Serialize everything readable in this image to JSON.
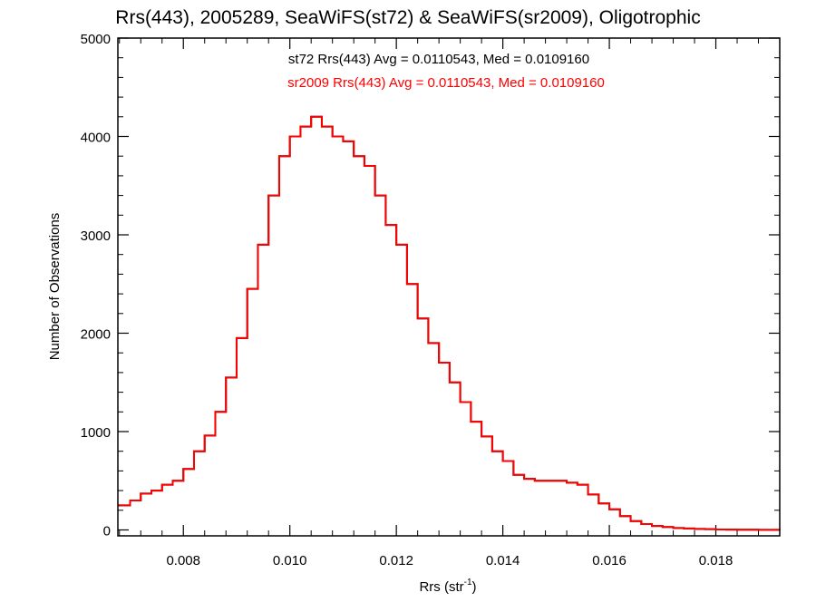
{
  "chart_data": {
    "type": "line",
    "title": "Rrs(443), 2005289, SeaWiFS(st72) & SeaWiFS(sr2009), Oligotrophic",
    "xlabel_main": "Rrs (str",
    "xlabel_sup": "-1",
    "xlabel_close": ")",
    "ylabel": "Number of Observations",
    "xlim": [
      0.00677,
      0.0192
    ],
    "ylim": [
      -60,
      5000
    ],
    "xticks": [
      {
        "value": 0.008,
        "label": "0.008"
      },
      {
        "value": 0.01,
        "label": "0.010"
      },
      {
        "value": 0.012,
        "label": "0.012"
      },
      {
        "value": 0.014,
        "label": "0.014"
      },
      {
        "value": 0.016,
        "label": "0.016"
      },
      {
        "value": 0.018,
        "label": "0.018"
      }
    ],
    "yticks": [
      {
        "value": 0,
        "label": "0"
      },
      {
        "value": 1000,
        "label": "1000"
      },
      {
        "value": 2000,
        "label": "2000"
      },
      {
        "value": 3000,
        "label": "3000"
      },
      {
        "value": 4000,
        "label": "4000"
      },
      {
        "value": 5000,
        "label": "5000"
      }
    ],
    "annotations": [
      {
        "text": "st72 Rrs(443) Avg = 0.0110543, Med = 0.0109160",
        "color": "#000000"
      },
      {
        "text": "sr2009 Rrs(443) Avg = 0.0110543, Med = 0.0109160",
        "color": "#ff0000"
      }
    ],
    "series": [
      {
        "name": "st72",
        "color": "#000000",
        "x": [
          0.00677,
          0.007,
          0.0072,
          0.0074,
          0.0076,
          0.0078,
          0.008,
          0.0082,
          0.0084,
          0.0086,
          0.0088,
          0.009,
          0.0092,
          0.0094,
          0.0096,
          0.0098,
          0.01,
          0.0102,
          0.0104,
          0.0106,
          0.0108,
          0.011,
          0.0112,
          0.0114,
          0.0116,
          0.0118,
          0.012,
          0.0122,
          0.0124,
          0.0126,
          0.0128,
          0.013,
          0.0132,
          0.0134,
          0.0136,
          0.0138,
          0.014,
          0.0142,
          0.0144,
          0.0146,
          0.0148,
          0.015,
          0.0152,
          0.0154,
          0.0156,
          0.0158,
          0.016,
          0.0162,
          0.0164,
          0.0166,
          0.0168,
          0.017,
          0.0172,
          0.0174,
          0.0176,
          0.0178,
          0.018,
          0.0182,
          0.0184,
          0.0186,
          0.0188,
          0.019,
          0.0192
        ],
        "values": [
          250,
          300,
          370,
          400,
          460,
          500,
          620,
          800,
          960,
          1200,
          1550,
          1950,
          2450,
          2900,
          3400,
          3800,
          4000,
          4100,
          4200,
          4100,
          4000,
          3950,
          3800,
          3700,
          3400,
          3100,
          2900,
          2500,
          2150,
          1900,
          1700,
          1500,
          1300,
          1100,
          950,
          800,
          700,
          560,
          520,
          500,
          500,
          500,
          480,
          460,
          360,
          270,
          210,
          140,
          90,
          60,
          40,
          30,
          20,
          15,
          10,
          8,
          5,
          3,
          2,
          2,
          1,
          1,
          0
        ]
      },
      {
        "name": "sr2009",
        "color": "#ff0000",
        "x": [
          0.00677,
          0.007,
          0.0072,
          0.0074,
          0.0076,
          0.0078,
          0.008,
          0.0082,
          0.0084,
          0.0086,
          0.0088,
          0.009,
          0.0092,
          0.0094,
          0.0096,
          0.0098,
          0.01,
          0.0102,
          0.0104,
          0.0106,
          0.0108,
          0.011,
          0.0112,
          0.0114,
          0.0116,
          0.0118,
          0.012,
          0.0122,
          0.0124,
          0.0126,
          0.0128,
          0.013,
          0.0132,
          0.0134,
          0.0136,
          0.0138,
          0.014,
          0.0142,
          0.0144,
          0.0146,
          0.0148,
          0.015,
          0.0152,
          0.0154,
          0.0156,
          0.0158,
          0.016,
          0.0162,
          0.0164,
          0.0166,
          0.0168,
          0.017,
          0.0172,
          0.0174,
          0.0176,
          0.0178,
          0.018,
          0.0182,
          0.0184,
          0.0186,
          0.0188,
          0.019,
          0.0192
        ],
        "values": [
          250,
          300,
          370,
          400,
          460,
          500,
          620,
          800,
          960,
          1200,
          1550,
          1950,
          2450,
          2900,
          3400,
          3800,
          4000,
          4100,
          4200,
          4100,
          4000,
          3950,
          3800,
          3700,
          3400,
          3100,
          2900,
          2500,
          2150,
          1900,
          1700,
          1500,
          1300,
          1100,
          950,
          800,
          700,
          560,
          520,
          500,
          500,
          500,
          480,
          460,
          360,
          270,
          210,
          140,
          90,
          60,
          40,
          30,
          20,
          15,
          10,
          8,
          5,
          3,
          2,
          2,
          1,
          1,
          0
        ]
      }
    ]
  }
}
